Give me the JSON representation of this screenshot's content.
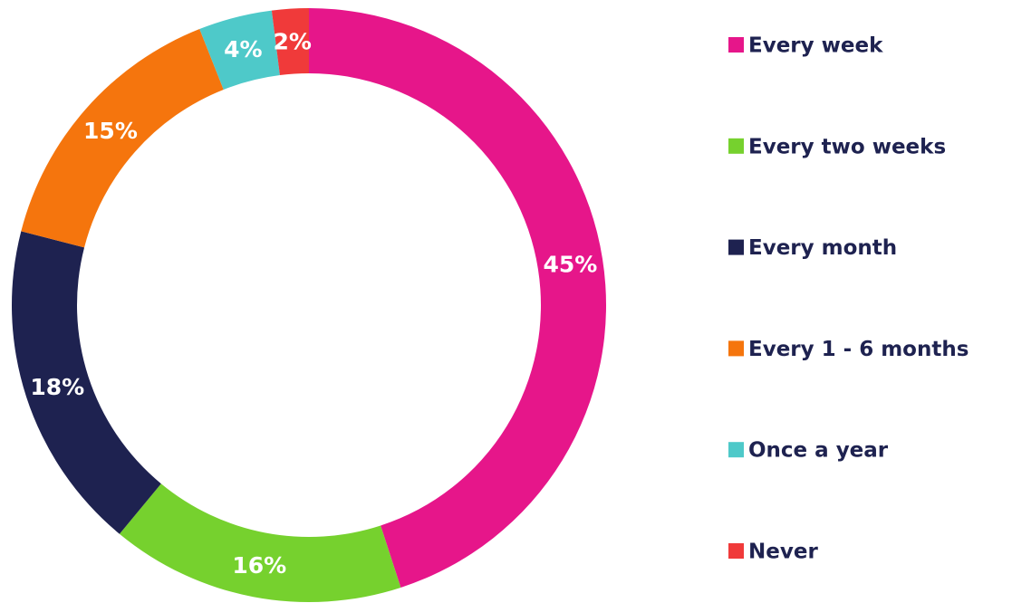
{
  "chart_data": {
    "type": "pie",
    "categories": [
      "Every week",
      "Every two weeks",
      "Every month",
      "Every 1 - 6 months",
      "Once a year",
      "Never"
    ],
    "values": [
      45,
      16,
      18,
      15,
      4,
      2
    ],
    "value_labels": [
      "45%",
      "16%",
      "18%",
      "15%",
      "4%",
      "2%"
    ],
    "colors": [
      "#e6168a",
      "#76d12e",
      "#1e2250",
      "#f5750d",
      "#4ec9c9",
      "#f03a3a"
    ],
    "legend": "right"
  }
}
